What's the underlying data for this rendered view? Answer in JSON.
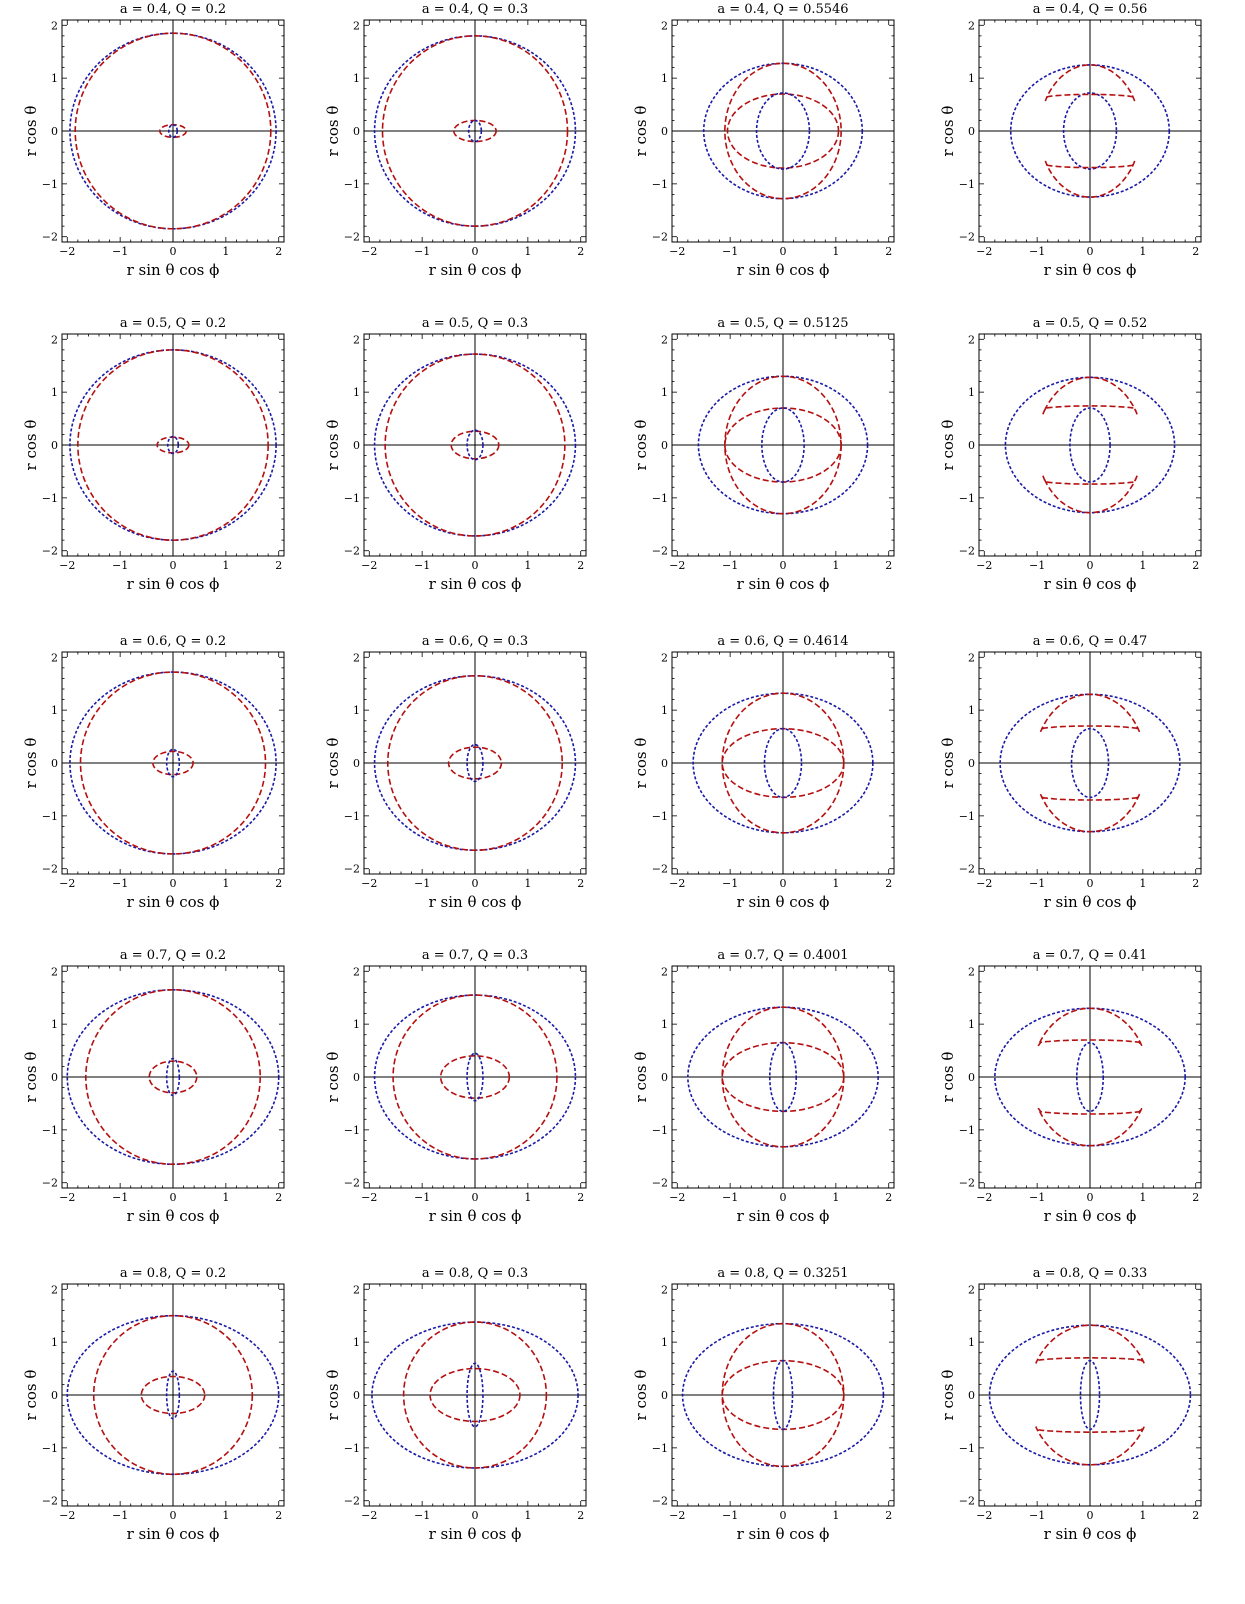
{
  "figure": {
    "xlabel": "r sin θ cos ϕ",
    "ylabel": "r cos θ",
    "ticks": [
      "−2",
      "−1",
      "0",
      "1",
      "2"
    ]
  },
  "colors": {
    "blue": "#1a1aa8",
    "red": "#b51010"
  },
  "chart_data": [
    {
      "type": "line",
      "title": "a = 0.4, Q = 0.2",
      "a": 0.4,
      "Q": 0.2,
      "xlim": [
        -2.1,
        2.1
      ],
      "ylim": [
        -2.1,
        2.1
      ],
      "series": [
        {
          "color": "blue",
          "rx": 1.95,
          "ry": 1.85
        },
        {
          "color": "red",
          "rx": 1.85,
          "ry": 1.85
        },
        {
          "color": "red",
          "rx": 0.25,
          "ry": 0.12
        },
        {
          "color": "blue",
          "rx": 0.08,
          "ry": 0.12
        }
      ]
    },
    {
      "type": "line",
      "title": "a = 0.4, Q = 0.3",
      "a": 0.4,
      "Q": 0.3,
      "xlim": [
        -2.1,
        2.1
      ],
      "ylim": [
        -2.1,
        2.1
      ],
      "series": [
        {
          "color": "blue",
          "rx": 1.9,
          "ry": 1.8
        },
        {
          "color": "red",
          "rx": 1.75,
          "ry": 1.8
        },
        {
          "color": "red",
          "rx": 0.4,
          "ry": 0.2
        },
        {
          "color": "blue",
          "rx": 0.12,
          "ry": 0.2
        }
      ]
    },
    {
      "type": "line",
      "title": "a = 0.4, Q = 0.5546",
      "a": 0.4,
      "Q": 0.5546,
      "xlim": [
        -2.1,
        2.1
      ],
      "ylim": [
        -2.1,
        2.1
      ],
      "series": [
        {
          "color": "blue",
          "rx": 1.5,
          "ry": 1.28
        },
        {
          "color": "red",
          "rx": 1.1,
          "ry": 1.28
        },
        {
          "color": "red",
          "rx": 1.05,
          "ry": 0.7
        },
        {
          "color": "blue",
          "rx": 0.5,
          "ry": 0.72
        }
      ]
    },
    {
      "type": "line",
      "title": "a = 0.4, Q = 0.56",
      "a": 0.4,
      "Q": 0.56,
      "xlim": [
        -2.1,
        2.1
      ],
      "ylim": [
        -2.1,
        2.1
      ],
      "series": [
        {
          "color": "blue",
          "rx": 1.5,
          "ry": 1.25
        },
        {
          "color": "blue",
          "rx": 0.5,
          "ry": 0.72
        },
        {
          "color": "red",
          "shape": "crescent",
          "rx": 0.95,
          "ry": 1.25,
          "inner": 0.5
        }
      ]
    },
    {
      "type": "line",
      "title": "a = 0.5, Q = 0.2",
      "a": 0.5,
      "Q": 0.2,
      "xlim": [
        -2.1,
        2.1
      ],
      "ylim": [
        -2.1,
        2.1
      ],
      "series": [
        {
          "color": "blue",
          "rx": 1.95,
          "ry": 1.8
        },
        {
          "color": "red",
          "rx": 1.8,
          "ry": 1.8
        },
        {
          "color": "red",
          "rx": 0.3,
          "ry": 0.15
        },
        {
          "color": "blue",
          "rx": 0.1,
          "ry": 0.16
        }
      ]
    },
    {
      "type": "line",
      "title": "a = 0.5, Q = 0.3",
      "a": 0.5,
      "Q": 0.3,
      "xlim": [
        -2.1,
        2.1
      ],
      "ylim": [
        -2.1,
        2.1
      ],
      "series": [
        {
          "color": "blue",
          "rx": 1.9,
          "ry": 1.72
        },
        {
          "color": "red",
          "rx": 1.7,
          "ry": 1.72
        },
        {
          "color": "red",
          "rx": 0.45,
          "ry": 0.26
        },
        {
          "color": "blue",
          "rx": 0.15,
          "ry": 0.28
        }
      ]
    },
    {
      "type": "line",
      "title": "a = 0.5, Q = 0.5125",
      "a": 0.5,
      "Q": 0.5125,
      "xlim": [
        -2.1,
        2.1
      ],
      "ylim": [
        -2.1,
        2.1
      ],
      "series": [
        {
          "color": "blue",
          "rx": 1.6,
          "ry": 1.3
        },
        {
          "color": "red",
          "rx": 1.1,
          "ry": 1.3
        },
        {
          "color": "red",
          "rx": 1.1,
          "ry": 0.7
        },
        {
          "color": "blue",
          "rx": 0.4,
          "ry": 0.7
        }
      ]
    },
    {
      "type": "line",
      "title": "a = 0.5, Q = 0.52",
      "a": 0.5,
      "Q": 0.52,
      "xlim": [
        -2.1,
        2.1
      ],
      "ylim": [
        -2.1,
        2.1
      ],
      "series": [
        {
          "color": "blue",
          "rx": 1.6,
          "ry": 1.28
        },
        {
          "color": "blue",
          "rx": 0.38,
          "ry": 0.7
        },
        {
          "color": "red",
          "shape": "crescent",
          "rx": 1.0,
          "ry": 1.28,
          "inner": 0.55
        }
      ]
    },
    {
      "type": "line",
      "title": "a = 0.6, Q = 0.2",
      "a": 0.6,
      "Q": 0.2,
      "xlim": [
        -2.1,
        2.1
      ],
      "ylim": [
        -2.1,
        2.1
      ],
      "series": [
        {
          "color": "blue",
          "rx": 1.95,
          "ry": 1.72
        },
        {
          "color": "red",
          "rx": 1.75,
          "ry": 1.72
        },
        {
          "color": "red",
          "rx": 0.38,
          "ry": 0.22
        },
        {
          "color": "blue",
          "rx": 0.12,
          "ry": 0.26
        }
      ]
    },
    {
      "type": "line",
      "title": "a = 0.6, Q = 0.3",
      "a": 0.6,
      "Q": 0.3,
      "xlim": [
        -2.1,
        2.1
      ],
      "ylim": [
        -2.1,
        2.1
      ],
      "series": [
        {
          "color": "blue",
          "rx": 1.9,
          "ry": 1.65
        },
        {
          "color": "red",
          "rx": 1.65,
          "ry": 1.65
        },
        {
          "color": "red",
          "rx": 0.5,
          "ry": 0.3
        },
        {
          "color": "blue",
          "rx": 0.15,
          "ry": 0.35
        }
      ]
    },
    {
      "type": "line",
      "title": "a = 0.6, Q = 0.4614",
      "a": 0.6,
      "Q": 0.4614,
      "xlim": [
        -2.1,
        2.1
      ],
      "ylim": [
        -2.1,
        2.1
      ],
      "series": [
        {
          "color": "blue",
          "rx": 1.7,
          "ry": 1.32
        },
        {
          "color": "red",
          "rx": 1.15,
          "ry": 1.32
        },
        {
          "color": "red",
          "rx": 1.15,
          "ry": 0.65
        },
        {
          "color": "blue",
          "rx": 0.35,
          "ry": 0.65
        }
      ]
    },
    {
      "type": "line",
      "title": "a = 0.6, Q = 0.47",
      "a": 0.6,
      "Q": 0.47,
      "xlim": [
        -2.1,
        2.1
      ],
      "ylim": [
        -2.1,
        2.1
      ],
      "series": [
        {
          "color": "blue",
          "rx": 1.7,
          "ry": 1.3
        },
        {
          "color": "blue",
          "rx": 0.35,
          "ry": 0.65
        },
        {
          "color": "red",
          "shape": "crescent",
          "rx": 1.05,
          "ry": 1.3,
          "inner": 0.5
        }
      ]
    },
    {
      "type": "line",
      "title": "a = 0.7, Q = 0.2",
      "a": 0.7,
      "Q": 0.2,
      "xlim": [
        -2.1,
        2.1
      ],
      "ylim": [
        -2.1,
        2.1
      ],
      "series": [
        {
          "color": "blue",
          "rx": 2.0,
          "ry": 1.65
        },
        {
          "color": "red",
          "rx": 1.65,
          "ry": 1.65
        },
        {
          "color": "red",
          "rx": 0.45,
          "ry": 0.3
        },
        {
          "color": "blue",
          "rx": 0.12,
          "ry": 0.35
        }
      ]
    },
    {
      "type": "line",
      "title": "a = 0.7, Q = 0.3",
      "a": 0.7,
      "Q": 0.3,
      "xlim": [
        -2.1,
        2.1
      ],
      "ylim": [
        -2.1,
        2.1
      ],
      "series": [
        {
          "color": "blue",
          "rx": 1.9,
          "ry": 1.55
        },
        {
          "color": "red",
          "rx": 1.55,
          "ry": 1.55
        },
        {
          "color": "red",
          "rx": 0.65,
          "ry": 0.4
        },
        {
          "color": "blue",
          "rx": 0.15,
          "ry": 0.45
        }
      ]
    },
    {
      "type": "line",
      "title": "a = 0.7, Q = 0.4001",
      "a": 0.7,
      "Q": 0.4001,
      "xlim": [
        -2.1,
        2.1
      ],
      "ylim": [
        -2.1,
        2.1
      ],
      "series": [
        {
          "color": "blue",
          "rx": 1.8,
          "ry": 1.32
        },
        {
          "color": "red",
          "rx": 1.15,
          "ry": 1.32
        },
        {
          "color": "red",
          "rx": 1.15,
          "ry": 0.65
        },
        {
          "color": "blue",
          "rx": 0.25,
          "ry": 0.65
        }
      ]
    },
    {
      "type": "line",
      "title": "a = 0.7, Q = 0.41",
      "a": 0.7,
      "Q": 0.41,
      "xlim": [
        -2.1,
        2.1
      ],
      "ylim": [
        -2.1,
        2.1
      ],
      "series": [
        {
          "color": "blue",
          "rx": 1.8,
          "ry": 1.3
        },
        {
          "color": "blue",
          "rx": 0.25,
          "ry": 0.65
        },
        {
          "color": "red",
          "shape": "crescent",
          "rx": 1.1,
          "ry": 1.3,
          "inner": 0.5
        }
      ]
    },
    {
      "type": "line",
      "title": "a = 0.8, Q = 0.2",
      "a": 0.8,
      "Q": 0.2,
      "xlim": [
        -2.1,
        2.1
      ],
      "ylim": [
        -2.1,
        2.1
      ],
      "series": [
        {
          "color": "blue",
          "rx": 2.0,
          "ry": 1.5
        },
        {
          "color": "red",
          "rx": 1.5,
          "ry": 1.5
        },
        {
          "color": "red",
          "rx": 0.6,
          "ry": 0.35
        },
        {
          "color": "blue",
          "rx": 0.12,
          "ry": 0.45
        }
      ]
    },
    {
      "type": "line",
      "title": "a = 0.8, Q = 0.3",
      "a": 0.8,
      "Q": 0.3,
      "xlim": [
        -2.1,
        2.1
      ],
      "ylim": [
        -2.1,
        2.1
      ],
      "series": [
        {
          "color": "blue",
          "rx": 1.95,
          "ry": 1.38
        },
        {
          "color": "red",
          "rx": 1.35,
          "ry": 1.38
        },
        {
          "color": "red",
          "rx": 0.85,
          "ry": 0.5
        },
        {
          "color": "blue",
          "rx": 0.15,
          "ry": 0.6
        }
      ]
    },
    {
      "type": "line",
      "title": "a = 0.8, Q = 0.3251",
      "a": 0.8,
      "Q": 0.3251,
      "xlim": [
        -2.1,
        2.1
      ],
      "ylim": [
        -2.1,
        2.1
      ],
      "series": [
        {
          "color": "blue",
          "rx": 1.9,
          "ry": 1.35
        },
        {
          "color": "red",
          "rx": 1.15,
          "ry": 1.35
        },
        {
          "color": "red",
          "rx": 1.15,
          "ry": 0.65
        },
        {
          "color": "blue",
          "rx": 0.18,
          "ry": 0.65
        }
      ]
    },
    {
      "type": "line",
      "title": "a = 0.8, Q = 0.33",
      "a": 0.8,
      "Q": 0.33,
      "xlim": [
        -2.1,
        2.1
      ],
      "ylim": [
        -2.1,
        2.1
      ],
      "series": [
        {
          "color": "blue",
          "rx": 1.9,
          "ry": 1.32
        },
        {
          "color": "blue",
          "rx": 0.18,
          "ry": 0.65
        },
        {
          "color": "red",
          "shape": "crescent",
          "rx": 1.15,
          "ry": 1.32,
          "inner": 0.5
        }
      ]
    }
  ]
}
